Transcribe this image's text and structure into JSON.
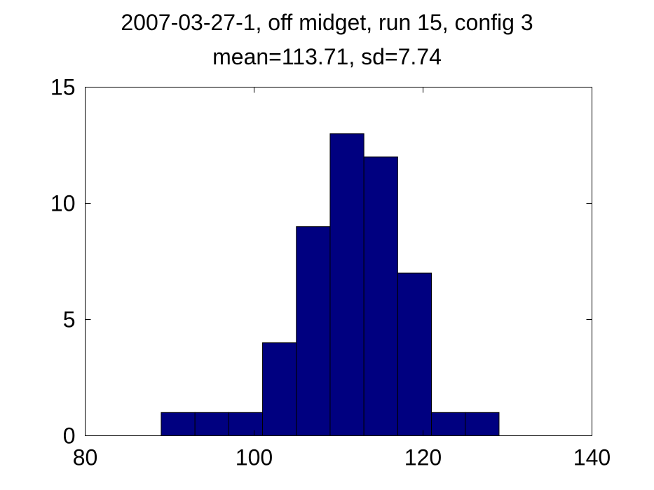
{
  "chart_data": {
    "type": "bar",
    "title": "2007-03-27-1, off midget, run 15, config 3",
    "subtitle": "mean=113.71, sd=7.74",
    "xlabel": "",
    "ylabel": "",
    "xlim": [
      80,
      140
    ],
    "ylim": [
      0,
      15
    ],
    "xticks": [
      "80",
      "100",
      "120",
      "140"
    ],
    "yticks": [
      "0",
      "5",
      "10",
      "15"
    ],
    "grid": false,
    "bar_color": "#000080",
    "bins": [
      {
        "left": 89.0,
        "right": 93.0,
        "count": 1
      },
      {
        "left": 93.0,
        "right": 97.0,
        "count": 1
      },
      {
        "left": 97.0,
        "right": 101.0,
        "count": 1
      },
      {
        "left": 101.0,
        "right": 105.0,
        "count": 4
      },
      {
        "left": 105.0,
        "right": 109.0,
        "count": 9
      },
      {
        "left": 109.0,
        "right": 113.0,
        "count": 13
      },
      {
        "left": 113.0,
        "right": 117.0,
        "count": 12
      },
      {
        "left": 117.0,
        "right": 121.0,
        "count": 7
      },
      {
        "left": 121.0,
        "right": 125.0,
        "count": 1
      },
      {
        "left": 125.0,
        "right": 129.0,
        "count": 1
      }
    ]
  }
}
